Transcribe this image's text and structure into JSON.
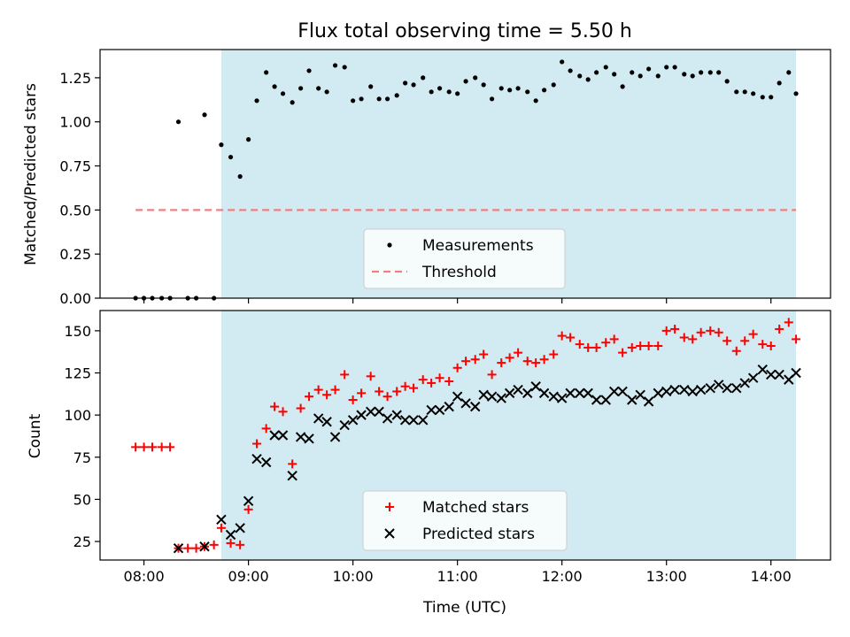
{
  "title": "Flux total observing time = 5.50 h",
  "colors": {
    "observing_window": "#add8e6",
    "measurements": "#000000",
    "threshold": "#f08080",
    "matched": "#ff0000",
    "predicted": "#000000"
  },
  "chart_data": [
    {
      "type": "scatter",
      "ylabel": "Matched/Predicted stars",
      "xlim": [
        7.58,
        14.57
      ],
      "ylim": [
        0,
        1.41
      ],
      "yticks": [
        0.0,
        0.25,
        0.5,
        0.75,
        1.0,
        1.25
      ],
      "ytick_labels": [
        "0.00",
        "0.25",
        "0.50",
        "0.75",
        "1.00",
        "1.25"
      ],
      "shaded_span": [
        8.74,
        14.24
      ],
      "threshold": {
        "value": 0.5,
        "x_range": [
          7.92,
          14.24
        ]
      },
      "legend": {
        "placement": "lower-center",
        "entries": [
          "Measurements",
          "Threshold"
        ]
      },
      "series": [
        {
          "name": "Measurements",
          "x": [
            7.92,
            8.0,
            8.08,
            8.17,
            8.25,
            8.33,
            8.42,
            8.5,
            8.58,
            8.67,
            8.74,
            8.83,
            8.92,
            9.0,
            9.08,
            9.17,
            9.25,
            9.33,
            9.42,
            9.5,
            9.58,
            9.67,
            9.75,
            9.83,
            9.92,
            10.0,
            10.08,
            10.17,
            10.25,
            10.33,
            10.42,
            10.5,
            10.58,
            10.67,
            10.75,
            10.83,
            10.92,
            11.0,
            11.08,
            11.17,
            11.25,
            11.33,
            11.42,
            11.5,
            11.58,
            11.67,
            11.75,
            11.83,
            11.92,
            12.0,
            12.08,
            12.17,
            12.25,
            12.33,
            12.42,
            12.5,
            12.58,
            12.67,
            12.75,
            12.83,
            12.92,
            13.0,
            13.08,
            13.17,
            13.25,
            13.33,
            13.42,
            13.5,
            13.58,
            13.67,
            13.75,
            13.83,
            13.92,
            14.0,
            14.08,
            14.17,
            14.24
          ],
          "y": [
            0,
            0,
            0,
            0,
            0,
            1.0,
            0,
            0,
            1.04,
            0,
            0.87,
            0.8,
            0.69,
            0.9,
            1.12,
            1.28,
            1.2,
            1.16,
            1.11,
            1.19,
            1.29,
            1.19,
            1.17,
            1.32,
            1.31,
            1.12,
            1.13,
            1.2,
            1.13,
            1.13,
            1.15,
            1.22,
            1.21,
            1.25,
            1.17,
            1.19,
            1.17,
            1.16,
            1.23,
            1.25,
            1.21,
            1.13,
            1.19,
            1.18,
            1.19,
            1.17,
            1.12,
            1.18,
            1.21,
            1.34,
            1.29,
            1.26,
            1.24,
            1.28,
            1.31,
            1.27,
            1.2,
            1.28,
            1.26,
            1.3,
            1.26,
            1.31,
            1.31,
            1.27,
            1.26,
            1.28,
            1.28,
            1.28,
            1.23,
            1.17,
            1.17,
            1.16,
            1.14,
            1.14,
            1.22,
            1.28,
            1.16
          ]
        }
      ]
    },
    {
      "type": "scatter",
      "xlabel": "Time (UTC)",
      "ylabel": "Count",
      "xlim": [
        7.58,
        14.57
      ],
      "ylim": [
        14,
        162
      ],
      "yticks": [
        25,
        50,
        75,
        100,
        125,
        150
      ],
      "xticks": [
        8,
        9,
        10,
        11,
        12,
        13,
        14
      ],
      "xtick_labels": [
        "08:00",
        "09:00",
        "10:00",
        "11:00",
        "12:00",
        "13:00",
        "14:00"
      ],
      "shaded_span": [
        8.74,
        14.24
      ],
      "legend": {
        "placement": "lower-center",
        "entries": [
          "Matched stars",
          "Predicted stars"
        ]
      },
      "series": [
        {
          "name": "Matched stars",
          "marker": "+",
          "x": [
            7.92,
            8.0,
            8.08,
            8.17,
            8.25,
            8.33,
            8.42,
            8.5,
            8.58,
            8.67,
            8.74,
            8.83,
            8.92,
            9.0,
            9.08,
            9.17,
            9.25,
            9.33,
            9.42,
            9.5,
            9.58,
            9.67,
            9.75,
            9.83,
            9.92,
            10.0,
            10.08,
            10.17,
            10.25,
            10.33,
            10.42,
            10.5,
            10.58,
            10.67,
            10.75,
            10.83,
            10.92,
            11.0,
            11.08,
            11.17,
            11.25,
            11.33,
            11.42,
            11.5,
            11.58,
            11.67,
            11.75,
            11.83,
            11.92,
            12.0,
            12.08,
            12.17,
            12.25,
            12.33,
            12.42,
            12.5,
            12.58,
            12.67,
            12.75,
            12.83,
            12.92,
            13.0,
            13.08,
            13.17,
            13.25,
            13.33,
            13.42,
            13.5,
            13.58,
            13.67,
            13.75,
            13.83,
            13.92,
            14.0,
            14.08,
            14.17,
            14.24
          ],
          "y": [
            81,
            81,
            81,
            81,
            81,
            21,
            21,
            21,
            22,
            23,
            33,
            24,
            23,
            44,
            83,
            92,
            105,
            102,
            71,
            104,
            111,
            115,
            112,
            115,
            124,
            109,
            113,
            123,
            114,
            111,
            114,
            117,
            116,
            121,
            119,
            122,
            120,
            128,
            132,
            133,
            136,
            124,
            131,
            134,
            137,
            132,
            131,
            133,
            136,
            147,
            146,
            142,
            140,
            140,
            143,
            145,
            137,
            140,
            141,
            141,
            141,
            150,
            151,
            146,
            145,
            149,
            150,
            149,
            144,
            138,
            144,
            148,
            142,
            141,
            151,
            155,
            145
          ]
        },
        {
          "name": "Predicted stars",
          "marker": "x",
          "x": [
            8.33,
            8.58,
            8.74,
            8.83,
            8.92,
            9.0,
            9.08,
            9.17,
            9.25,
            9.33,
            9.42,
            9.5,
            9.58,
            9.67,
            9.75,
            9.83,
            9.92,
            10.0,
            10.08,
            10.17,
            10.25,
            10.33,
            10.42,
            10.5,
            10.58,
            10.67,
            10.75,
            10.83,
            10.92,
            11.0,
            11.08,
            11.17,
            11.25,
            11.33,
            11.42,
            11.5,
            11.58,
            11.67,
            11.75,
            11.83,
            11.92,
            12.0,
            12.08,
            12.17,
            12.25,
            12.33,
            12.42,
            12.5,
            12.58,
            12.67,
            12.75,
            12.83,
            12.92,
            13.0,
            13.08,
            13.17,
            13.25,
            13.33,
            13.42,
            13.5,
            13.58,
            13.67,
            13.75,
            13.83,
            13.92,
            14.0,
            14.08,
            14.17,
            14.24
          ],
          "y": [
            21,
            22,
            38,
            29,
            33,
            49,
            74,
            72,
            88,
            88,
            64,
            87,
            86,
            98,
            96,
            87,
            94,
            97,
            100,
            102,
            102,
            98,
            100,
            97,
            97,
            97,
            103,
            103,
            105,
            111,
            107,
            105,
            112,
            111,
            110,
            113,
            115,
            113,
            117,
            113,
            111,
            110,
            113,
            113,
            113,
            109,
            109,
            114,
            114,
            109,
            112,
            108,
            113,
            114,
            115,
            115,
            114,
            115,
            116,
            118,
            116,
            116,
            119,
            122,
            127,
            124,
            124,
            121,
            125
          ]
        }
      ]
    }
  ]
}
